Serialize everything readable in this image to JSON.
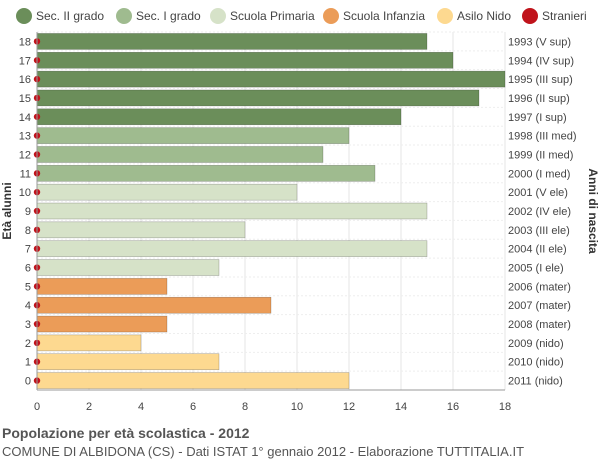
{
  "chart_data": {
    "type": "bar",
    "orientation": "horizontal",
    "ylabel_left": "Età alunni",
    "ylabel_right": "Anni di nascita",
    "xlim": [
      0,
      18
    ],
    "x_ticks": [
      0,
      2,
      4,
      6,
      8,
      10,
      12,
      14,
      16,
      18
    ],
    "grid": true,
    "legend_position": "top",
    "legend": [
      {
        "label": "Sec. II grado",
        "color": "#6b8e5a"
      },
      {
        "label": "Sec. I grado",
        "color": "#9fbb8f"
      },
      {
        "label": "Scuola Primaria",
        "color": "#d6e2c8"
      },
      {
        "label": "Scuola Infanzia",
        "color": "#eb9c58"
      },
      {
        "label": "Asilo Nido",
        "color": "#fdd990"
      },
      {
        "label": "Stranieri",
        "color": "#c0131b"
      }
    ],
    "rows": [
      {
        "age": "18",
        "year": "1993 (V sup)",
        "value": 15,
        "group": 0,
        "stranieri": 0
      },
      {
        "age": "17",
        "year": "1994 (IV sup)",
        "value": 16,
        "group": 0,
        "stranieri": 0
      },
      {
        "age": "16",
        "year": "1995 (III sup)",
        "value": 18,
        "group": 0,
        "stranieri": 0
      },
      {
        "age": "15",
        "year": "1996 (II sup)",
        "value": 17,
        "group": 0,
        "stranieri": 0
      },
      {
        "age": "14",
        "year": "1997 (I sup)",
        "value": 14,
        "group": 0,
        "stranieri": 0
      },
      {
        "age": "13",
        "year": "1998 (III med)",
        "value": 12,
        "group": 1,
        "stranieri": 0
      },
      {
        "age": "12",
        "year": "1999 (II med)",
        "value": 11,
        "group": 1,
        "stranieri": 0
      },
      {
        "age": "11",
        "year": "2000 (I med)",
        "value": 13,
        "group": 1,
        "stranieri": 0
      },
      {
        "age": "10",
        "year": "2001 (V ele)",
        "value": 10,
        "group": 2,
        "stranieri": 0
      },
      {
        "age": "9",
        "year": "2002 (IV ele)",
        "value": 15,
        "group": 2,
        "stranieri": 0
      },
      {
        "age": "8",
        "year": "2003 (III ele)",
        "value": 8,
        "group": 2,
        "stranieri": 0
      },
      {
        "age": "7",
        "year": "2004 (II ele)",
        "value": 15,
        "group": 2,
        "stranieri": 0
      },
      {
        "age": "6",
        "year": "2005 (I ele)",
        "value": 7,
        "group": 2,
        "stranieri": 0
      },
      {
        "age": "5",
        "year": "2006 (mater)",
        "value": 5,
        "group": 3,
        "stranieri": 0
      },
      {
        "age": "4",
        "year": "2007 (mater)",
        "value": 9,
        "group": 3,
        "stranieri": 0
      },
      {
        "age": "3",
        "year": "2008 (mater)",
        "value": 5,
        "group": 3,
        "stranieri": 0
      },
      {
        "age": "2",
        "year": "2009 (nido)",
        "value": 4,
        "group": 4,
        "stranieri": 0
      },
      {
        "age": "1",
        "year": "2010 (nido)",
        "value": 7,
        "group": 4,
        "stranieri": 0
      },
      {
        "age": "0",
        "year": "2011 (nido)",
        "value": 12,
        "group": 4,
        "stranieri": 0
      }
    ]
  },
  "footer": {
    "title": "Popolazione per età scolastica - 2012",
    "subtitle": "COMUNE DI ALBIDONA (CS) - Dati ISTAT 1° gennaio 2012 - Elaborazione TUTTITALIA.IT"
  }
}
